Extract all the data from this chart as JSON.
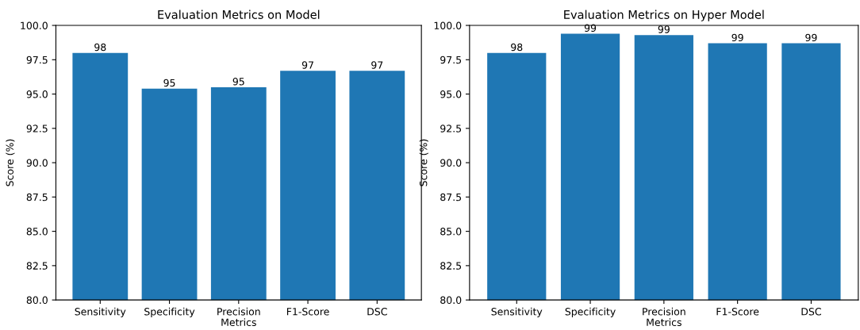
{
  "chart_data": [
    {
      "type": "bar",
      "title": "Evaluation Metrics on Model",
      "xlabel": "Metrics",
      "ylabel": "Score (%)",
      "categories": [
        "Sensitivity",
        "Specificity",
        "Precision",
        "F1-Score",
        "DSC"
      ],
      "values": [
        98.0,
        95.4,
        95.5,
        96.7,
        96.7
      ],
      "value_labels": [
        "98",
        "95",
        "95",
        "97",
        "97"
      ],
      "color": "#1f77b4",
      "ylim": [
        80,
        100
      ],
      "yticks": [
        {
          "value": 80,
          "label": "80.0"
        },
        {
          "value": 82.5,
          "label": "82.5"
        },
        {
          "value": 85,
          "label": "85.0"
        },
        {
          "value": 87.5,
          "label": "87.5"
        },
        {
          "value": 90,
          "label": "90.0"
        },
        {
          "value": 92.5,
          "label": "92.5"
        },
        {
          "value": 95,
          "label": "95.0"
        },
        {
          "value": 97.5,
          "label": "97.5"
        },
        {
          "value": 100,
          "label": "100.0"
        }
      ]
    },
    {
      "type": "bar",
      "title": "Evaluation Metrics on Hyper Model",
      "xlabel": "Metrics",
      "ylabel": "Score (%)",
      "categories": [
        "Sensitivity",
        "Specificity",
        "Precision",
        "F1-Score",
        "DSC"
      ],
      "values": [
        98.0,
        99.4,
        99.3,
        98.7,
        98.7
      ],
      "value_labels": [
        "98",
        "99",
        "99",
        "99",
        "99"
      ],
      "color": "#1f77b4",
      "ylim": [
        80,
        100
      ],
      "yticks": [
        {
          "value": 80,
          "label": "80.0"
        },
        {
          "value": 82.5,
          "label": "82.5"
        },
        {
          "value": 85,
          "label": "85.0"
        },
        {
          "value": 87.5,
          "label": "87.5"
        },
        {
          "value": 90,
          "label": "90.0"
        },
        {
          "value": 92.5,
          "label": "92.5"
        },
        {
          "value": 95,
          "label": "95.0"
        },
        {
          "value": 97.5,
          "label": "97.5"
        },
        {
          "value": 100,
          "label": "100.0"
        }
      ]
    }
  ]
}
